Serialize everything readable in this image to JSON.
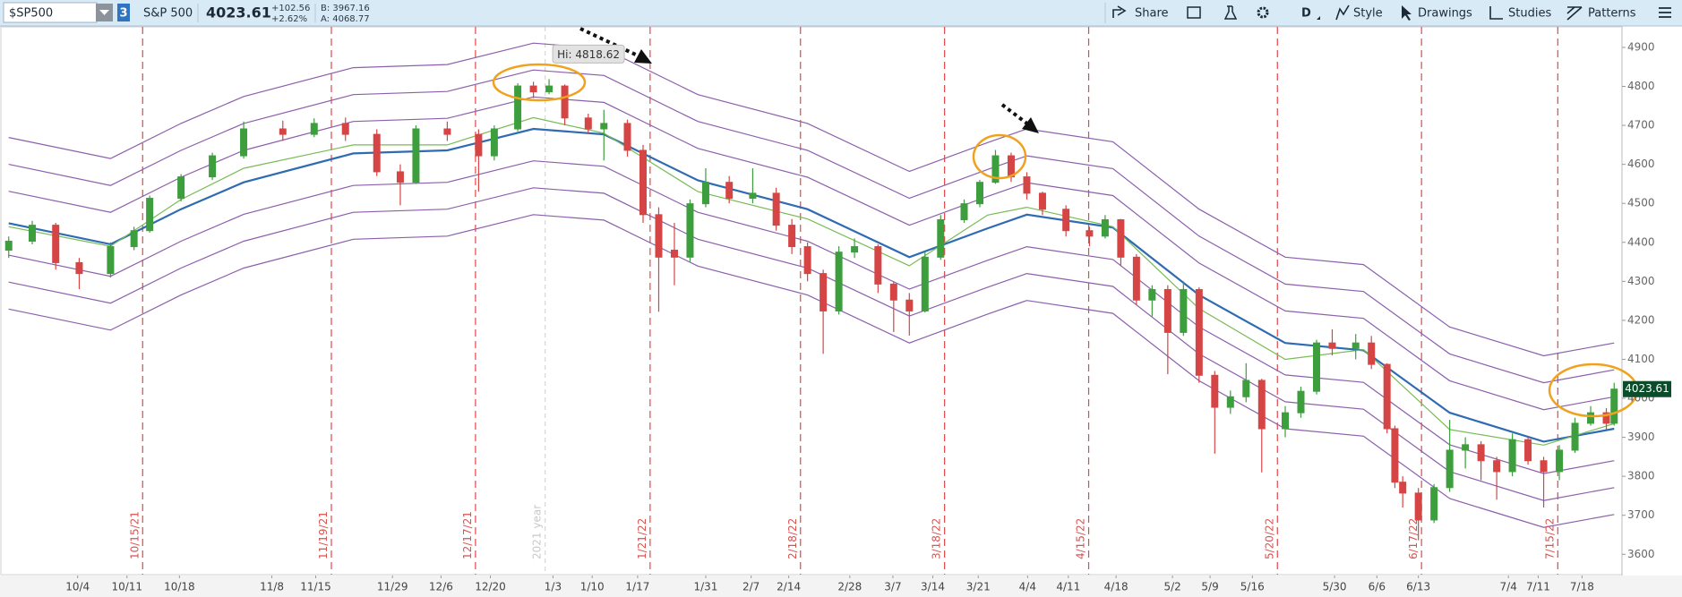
{
  "toolbar": {
    "symbol": "$SP500",
    "link": "3",
    "name": "S&P 500",
    "last": "4023.61",
    "change": "+102.56",
    "change_pct": "+2.62%",
    "bid": "B: 3967.16",
    "ask": "A: 4068.77",
    "buttons": [
      "Share",
      "D",
      "Style",
      "Drawings",
      "Studies",
      "Patterns"
    ]
  },
  "chart_data": {
    "type": "candlestick",
    "x": [
      0,
      3,
      6,
      9,
      13,
      16,
      18,
      22,
      26,
      30,
      35,
      39,
      43,
      47,
      50,
      52,
      56,
      60,
      62,
      65,
      67,
      69,
      71,
      74,
      76,
      79,
      81,
      83,
      85,
      87,
      89,
      92,
      95,
      98,
      100,
      102,
      104,
      106,
      108,
      111,
      113,
      115,
      117,
      119,
      122,
      124,
      126,
      128,
      130,
      132,
      135,
      138,
      140,
      142,
      144,
      146,
      148,
      150,
      152,
      154,
      156,
      158,
      160,
      163,
      165,
      167,
      169,
      172,
      174,
      176,
      177,
      178,
      180,
      182,
      184,
      186,
      188,
      190,
      192,
      194,
      196,
      198,
      200,
      202,
      204,
      205
    ],
    "open": [
      4380,
      4403,
      4444,
      4348,
      4320,
      4389,
      4430,
      4513,
      4568,
      4622,
      4691,
      4677,
      4705,
      4677,
      4581,
      4554,
      4691,
      4677,
      4622,
      4691,
      4801,
      4786,
      4801,
      4719,
      4691,
      4705,
      4636,
      4471,
      4380,
      4362,
      4499,
      4554,
      4513,
      4526,
      4444,
      4389,
      4320,
      4224,
      4375,
      4389,
      4293,
      4252,
      4224,
      4362,
      4458,
      4499,
      4554,
      4622,
      4568,
      4526,
      4485,
      4430,
      4416,
      4458,
      4362,
      4252,
      4279,
      4169,
      4279,
      4059,
      3977,
      4004,
      4046,
      3922,
      3963,
      4018,
      4142,
      4128,
      4142,
      4087,
      3922,
      3785,
      3757,
      3688,
      3771,
      3867,
      3881,
      3840,
      3812,
      3894,
      3840,
      3812,
      3867,
      3936,
      3963,
      3936
    ],
    "high": [
      4415,
      4455,
      4450,
      4360,
      4400,
      4440,
      4520,
      4575,
      4630,
      4710,
      4712,
      4718,
      4720,
      4690,
      4600,
      4700,
      4710,
      4690,
      4700,
      4808,
      4812,
      4818.62,
      4805,
      4730,
      4740,
      4715,
      4650,
      4490,
      4450,
      4510,
      4590,
      4570,
      4590,
      4540,
      4460,
      4400,
      4330,
      4390,
      4410,
      4395,
      4300,
      4270,
      4375,
      4470,
      4510,
      4560,
      4637,
      4630,
      4580,
      4530,
      4495,
      4440,
      4470,
      4460,
      4370,
      4290,
      4290,
      4300,
      4285,
      4070,
      4020,
      4090,
      4050,
      3980,
      4030,
      4150,
      4177,
      4165,
      4160,
      4090,
      3930,
      3800,
      3770,
      3780,
      3945,
      3900,
      3890,
      3850,
      3910,
      3900,
      3850,
      3880,
      3950,
      3980,
      3975,
      4040
    ],
    "low": [
      4360,
      4395,
      4330,
      4280,
      4310,
      4380,
      4425,
      4505,
      4560,
      4615,
      4660,
      4670,
      4660,
      4570,
      4495,
      4550,
      4660,
      4530,
      4610,
      4685,
      4770,
      4780,
      4700,
      4680,
      4610,
      4620,
      4450,
      4222,
      4290,
      4350,
      4490,
      4500,
      4500,
      4430,
      4370,
      4300,
      4114,
      4215,
      4360,
      4270,
      4170,
      4161,
      4220,
      4355,
      4450,
      4490,
      4550,
      4555,
      4510,
      4470,
      4415,
      4390,
      4410,
      4340,
      4240,
      4210,
      4062,
      4160,
      4040,
      3858,
      3960,
      3990,
      3810,
      3900,
      3950,
      4010,
      4110,
      4100,
      4075,
      3910,
      3770,
      3720,
      3636,
      3680,
      3760,
      3820,
      3790,
      3740,
      3800,
      3830,
      3720,
      3790,
      3860,
      3930,
      3920,
      3930
    ],
    "close": [
      4403,
      4444,
      4348,
      4320,
      4389,
      4430,
      4513,
      4568,
      4622,
      4691,
      4677,
      4705,
      4677,
      4581,
      4554,
      4691,
      4677,
      4622,
      4691,
      4801,
      4786,
      4801,
      4719,
      4691,
      4705,
      4636,
      4471,
      4362,
      4362,
      4499,
      4554,
      4513,
      4526,
      4444,
      4389,
      4320,
      4224,
      4375,
      4389,
      4293,
      4252,
      4224,
      4362,
      4458,
      4499,
      4554,
      4622,
      4568,
      4526,
      4485,
      4430,
      4416,
      4458,
      4362,
      4252,
      4279,
      4169,
      4279,
      4059,
      3977,
      4004,
      4046,
      3922,
      3963,
      4018,
      4142,
      4128,
      4142,
      4087,
      3922,
      3785,
      3757,
      3688,
      3771,
      3867,
      3881,
      3840,
      3812,
      3894,
      3840,
      3812,
      3867,
      3936,
      3963,
      3936,
      4023.61
    ],
    "up_color": "#3c9e3c",
    "down_color": "#d64545",
    "line_x": [
      0,
      13,
      22,
      30,
      44,
      56,
      67,
      76,
      88,
      102,
      115,
      125,
      130,
      141,
      152,
      163,
      173,
      184,
      196,
      205
    ],
    "lines": [
      {
        "color": "#2e6bb3",
        "values": [
          4449,
          4395,
          4485,
          4554,
          4628,
          4636,
          4691,
          4677,
          4559,
          4485,
          4362,
          4436,
          4471,
          4438,
          4265,
          4142,
          4123,
          3963,
          3889,
          3922
        ]
      },
      {
        "color": "#79bb55",
        "values": [
          4440,
          4390,
          4510,
          4590,
          4650,
          4650,
          4720,
          4680,
          4530,
          4460,
          4340,
          4470,
          4490,
          4440,
          4230,
          4100,
          4125,
          3920,
          3880,
          3935
        ]
      },
      {
        "color": "#8c5fac",
        "values": [
          4669,
          4615,
          4705,
          4774,
          4848,
          4856,
          4911,
          4897,
          4779,
          4705,
          4582,
          4656,
          4691,
          4658,
          4485,
          4362,
          4343,
          4183,
          4109,
          4142
        ]
      },
      {
        "color": "#8c5fac",
        "values": [
          4600,
          4546,
          4636,
          4705,
          4779,
          4787,
          4842,
          4828,
          4710,
          4636,
          4513,
          4587,
          4622,
          4589,
          4416,
          4293,
          4274,
          4114,
          4040,
          4073
        ]
      },
      {
        "color": "#8c5fac",
        "values": [
          4531,
          4477,
          4567,
          4636,
          4710,
          4718,
          4773,
          4759,
          4641,
          4567,
          4444,
          4518,
          4553,
          4520,
          4347,
          4224,
          4205,
          4045,
          3971,
          4004
        ]
      },
      {
        "color": "#8c5fac",
        "values": [
          4367,
          4313,
          4403,
          4472,
          4546,
          4554,
          4609,
          4595,
          4477,
          4403,
          4280,
          4354,
          4389,
          4356,
          4183,
          4060,
          4041,
          3881,
          3807,
          3840
        ]
      },
      {
        "color": "#8c5fac",
        "values": [
          4298,
          4244,
          4334,
          4403,
          4477,
          4485,
          4540,
          4526,
          4408,
          4334,
          4211,
          4285,
          4320,
          4287,
          4114,
          3991,
          3972,
          3812,
          3738,
          3771
        ]
      },
      {
        "color": "#8c5fac",
        "values": [
          4229,
          4175,
          4265,
          4334,
          4408,
          4416,
          4471,
          4457,
          4339,
          4265,
          4142,
          4216,
          4251,
          4218,
          4045,
          3922,
          3903,
          3743,
          3669,
          3702
        ]
      }
    ],
    "xlim": [
      -1,
      206
    ],
    "ylim": [
      3557,
      4955
    ],
    "yticks": [
      3600,
      3700,
      3800,
      3900,
      4000,
      4100,
      4200,
      4300,
      4400,
      4500,
      4600,
      4700,
      4800,
      4900
    ],
    "xticks": [
      {
        "value": 8.8,
        "label": "10/4"
      },
      {
        "value": 15.1,
        "label": "10/11"
      },
      {
        "value": 21.8,
        "label": "10/18"
      },
      {
        "value": 33.6,
        "label": "11/8"
      },
      {
        "value": 39.2,
        "label": "11/15"
      },
      {
        "value": 49,
        "label": "11/29"
      },
      {
        "value": 55.2,
        "label": "12/6"
      },
      {
        "value": 61.5,
        "label": "12/20"
      },
      {
        "value": 69.5,
        "label": "1/3"
      },
      {
        "value": 74.5,
        "label": "1/10"
      },
      {
        "value": 80.3,
        "label": "1/17"
      },
      {
        "value": 89,
        "label": "1/31"
      },
      {
        "value": 94.8,
        "label": "2/7"
      },
      {
        "value": 99.6,
        "label": "2/14"
      },
      {
        "value": 107.4,
        "label": "2/28"
      },
      {
        "value": 112.9,
        "label": "3/7"
      },
      {
        "value": 118,
        "label": "3/14"
      },
      {
        "value": 123.8,
        "label": "3/21"
      },
      {
        "value": 130.1,
        "label": "4/4"
      },
      {
        "value": 135.3,
        "label": "4/11"
      },
      {
        "value": 141.4,
        "label": "4/18"
      },
      {
        "value": 148.6,
        "label": "5/2"
      },
      {
        "value": 153.4,
        "label": "5/9"
      },
      {
        "value": 158.8,
        "label": "5/16"
      },
      {
        "value": 169.3,
        "label": "5/30"
      },
      {
        "value": 174.7,
        "label": "6/6"
      },
      {
        "value": 180,
        "label": "6/13"
      },
      {
        "value": 191.5,
        "label": "7/4"
      },
      {
        "value": 195.3,
        "label": "7/11"
      },
      {
        "value": 200.9,
        "label": "7/18"
      }
    ],
    "event_lines": [
      {
        "value": 17.1,
        "label": "10/15/21"
      },
      {
        "value": 41.2,
        "label": "11/19/21"
      },
      {
        "value": 59.6,
        "label": "12/17/21"
      },
      {
        "value": 81.9,
        "label": "1/21/22"
      },
      {
        "value": 101.1,
        "label": "2/18/22"
      },
      {
        "value": 119.5,
        "label": "3/18/22"
      },
      {
        "value": 137.9,
        "label": "4/15/22"
      },
      {
        "value": 162,
        "label": "5/20/22"
      },
      {
        "value": 180.4,
        "label": "6/17/22"
      },
      {
        "value": 197.8,
        "label": "7/15/22"
      }
    ],
    "year_marker": {
      "value": 68.5,
      "label": "2021 year"
    },
    "annotation": {
      "label": "Hi: 4818.62",
      "x": 69,
      "value": 4818.62
    }
  }
}
